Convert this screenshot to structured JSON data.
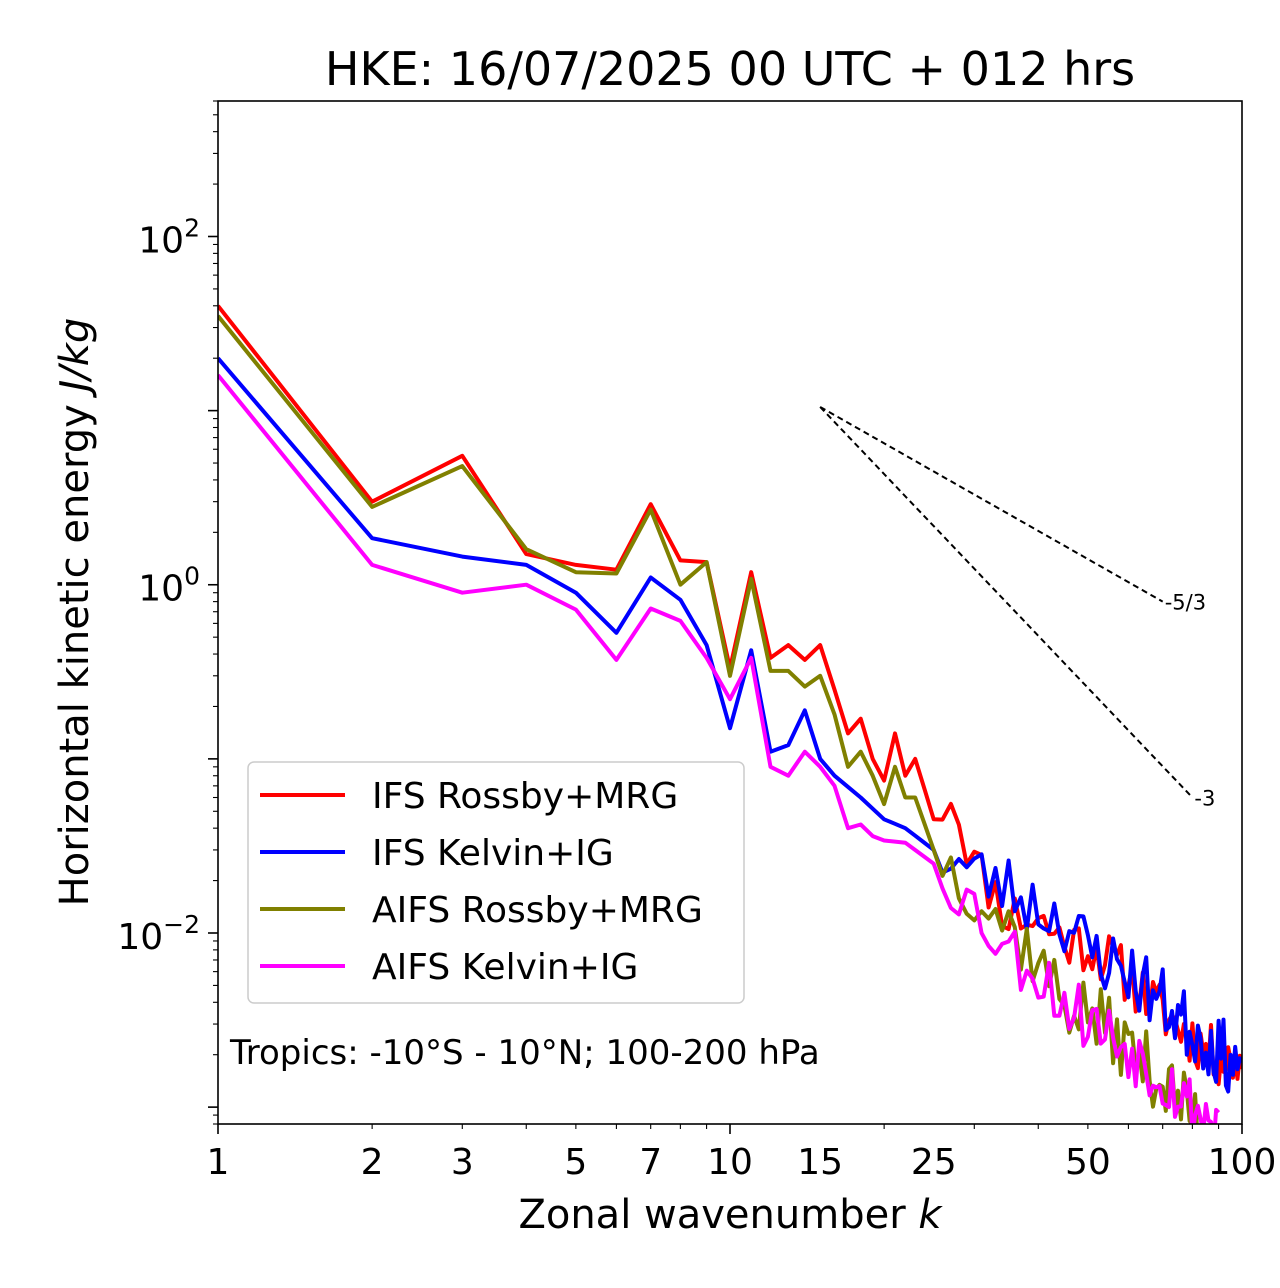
{
  "chart_data": {
    "type": "line",
    "title": "HKE: 16/07/2025 00 UTC + 012 hrs",
    "xlabel_main": "Zonal wavenumber",
    "xlabel_var": "k",
    "ylabel_main": "Horizontal kinetic energy",
    "ylabel_unit": "J/kg",
    "xscale": "log",
    "yscale": "log",
    "xlim": [
      1,
      100
    ],
    "ylim": [
      0.0008,
      600
    ],
    "x_ticks": [
      {
        "value": 1,
        "label": "1"
      },
      {
        "value": 2,
        "label": "2"
      },
      {
        "value": 3,
        "label": "3"
      },
      {
        "value": 5,
        "label": "5"
      },
      {
        "value": 7,
        "label": "7"
      },
      {
        "value": 10,
        "label": "10"
      },
      {
        "value": 15,
        "label": "15"
      },
      {
        "value": 25,
        "label": "25"
      },
      {
        "value": 50,
        "label": "50"
      },
      {
        "value": 100,
        "label": "100"
      }
    ],
    "y_ticks": [
      {
        "value": 100,
        "base": "10",
        "exp": "2"
      },
      {
        "value": 1,
        "base": "10",
        "exp": "0"
      },
      {
        "value": 0.01,
        "base": "10",
        "exp": "−2"
      }
    ],
    "annotation": "Tropics: -10°S - 10°N; 100-200 hPa",
    "legend_position": "lower-left",
    "reference_slopes": [
      {
        "label": "-5/3",
        "x0": 15,
        "y0": 10.5,
        "x1": 70,
        "y1": 0.8
      },
      {
        "label": "-3",
        "x0": 15,
        "y0": 10.5,
        "x1": 80,
        "y1": 0.06
      }
    ],
    "series": [
      {
        "name": "IFS Rossby+MRG",
        "color": "#ff0000",
        "anchors": [
          [
            1,
            40
          ],
          [
            2,
            3
          ],
          [
            3,
            5.5
          ],
          [
            4,
            1.5
          ],
          [
            5,
            1.3
          ],
          [
            6,
            1.22
          ],
          [
            7,
            2.9
          ],
          [
            8,
            1.38
          ],
          [
            9,
            1.35
          ],
          [
            10,
            0.33
          ],
          [
            11,
            1.18
          ],
          [
            12,
            0.38
          ],
          [
            13,
            0.45
          ],
          [
            14,
            0.37
          ],
          [
            15,
            0.45
          ],
          [
            16,
            0.25
          ],
          [
            17,
            0.14
          ],
          [
            18,
            0.17
          ],
          [
            19,
            0.1
          ],
          [
            20,
            0.075
          ],
          [
            21,
            0.14
          ],
          [
            22,
            0.08
          ],
          [
            23,
            0.1
          ],
          [
            25,
            0.045
          ],
          [
            27,
            0.065
          ],
          [
            30,
            0.025
          ],
          [
            35,
            0.013
          ],
          [
            40,
            0.012
          ],
          [
            45,
            0.009
          ],
          [
            50,
            0.0085
          ],
          [
            55,
            0.007
          ],
          [
            60,
            0.0055
          ],
          [
            70,
            0.0035
          ],
          [
            80,
            0.0025
          ],
          [
            90,
            0.0019
          ],
          [
            100,
            0.0018
          ]
        ],
        "seed": 11,
        "noise": 0.16,
        "xmax": 100
      },
      {
        "name": "IFS Kelvin+IG",
        "color": "#0000ff",
        "anchors": [
          [
            1,
            20
          ],
          [
            2,
            1.85
          ],
          [
            3,
            1.45
          ],
          [
            4,
            1.3
          ],
          [
            5,
            0.9
          ],
          [
            6,
            0.53
          ],
          [
            7,
            1.1
          ],
          [
            8,
            0.82
          ],
          [
            9,
            0.45
          ],
          [
            10,
            0.15
          ],
          [
            11,
            0.42
          ],
          [
            12,
            0.11
          ],
          [
            13,
            0.12
          ],
          [
            14,
            0.19
          ],
          [
            15,
            0.1
          ],
          [
            16,
            0.08
          ],
          [
            18,
            0.06
          ],
          [
            20,
            0.045
          ],
          [
            22,
            0.04
          ],
          [
            25,
            0.03
          ],
          [
            28,
            0.025
          ],
          [
            30,
            0.022
          ],
          [
            35,
            0.018
          ],
          [
            40,
            0.014
          ],
          [
            45,
            0.012
          ],
          [
            50,
            0.008
          ],
          [
            60,
            0.006
          ],
          [
            70,
            0.004
          ],
          [
            80,
            0.0028
          ],
          [
            90,
            0.0021
          ],
          [
            100,
            0.0017
          ]
        ],
        "seed": 23,
        "noise": 0.2,
        "xmax": 100
      },
      {
        "name": "AIFS Rossby+MRG",
        "color": "#808000",
        "anchors": [
          [
            1,
            35
          ],
          [
            2,
            2.8
          ],
          [
            3,
            4.8
          ],
          [
            4,
            1.6
          ],
          [
            5,
            1.18
          ],
          [
            6,
            1.16
          ],
          [
            7,
            2.7
          ],
          [
            8,
            1.0
          ],
          [
            9,
            1.35
          ],
          [
            10,
            0.3
          ],
          [
            11,
            1.08
          ],
          [
            12,
            0.32
          ],
          [
            13,
            0.32
          ],
          [
            14,
            0.26
          ],
          [
            15,
            0.3
          ],
          [
            16,
            0.18
          ],
          [
            17,
            0.09
          ],
          [
            18,
            0.11
          ],
          [
            19,
            0.08
          ],
          [
            20,
            0.055
          ],
          [
            21,
            0.09
          ],
          [
            22,
            0.06
          ],
          [
            23,
            0.06
          ],
          [
            25,
            0.03
          ],
          [
            27,
            0.024
          ],
          [
            30,
            0.018
          ],
          [
            35,
            0.011
          ],
          [
            40,
            0.007
          ],
          [
            45,
            0.004
          ],
          [
            50,
            0.0035
          ],
          [
            60,
            0.0022
          ],
          [
            70,
            0.0014
          ],
          [
            80,
            0.0009
          ],
          [
            85,
            0.0008
          ]
        ],
        "seed": 37,
        "noise": 0.2,
        "xmax": 86
      },
      {
        "name": "AIFS Kelvin+IG",
        "color": "#ff00ff",
        "anchors": [
          [
            1,
            16
          ],
          [
            2,
            1.3
          ],
          [
            3,
            0.9
          ],
          [
            4,
            1.0
          ],
          [
            5,
            0.72
          ],
          [
            6,
            0.37
          ],
          [
            7,
            0.73
          ],
          [
            8,
            0.62
          ],
          [
            9,
            0.38
          ],
          [
            10,
            0.22
          ],
          [
            11,
            0.38
          ],
          [
            12,
            0.09
          ],
          [
            13,
            0.08
          ],
          [
            14,
            0.11
          ],
          [
            15,
            0.09
          ],
          [
            16,
            0.07
          ],
          [
            17,
            0.04
          ],
          [
            18,
            0.042
          ],
          [
            19,
            0.036
          ],
          [
            20,
            0.034
          ],
          [
            22,
            0.033
          ],
          [
            25,
            0.025
          ],
          [
            28,
            0.018
          ],
          [
            30,
            0.014
          ],
          [
            35,
            0.008
          ],
          [
            40,
            0.006
          ],
          [
            45,
            0.004
          ],
          [
            50,
            0.0032
          ],
          [
            60,
            0.0022
          ],
          [
            70,
            0.0015
          ],
          [
            80,
            0.001
          ],
          [
            90,
            0.0008
          ]
        ],
        "seed": 53,
        "noise": 0.19,
        "xmax": 90
      }
    ]
  }
}
